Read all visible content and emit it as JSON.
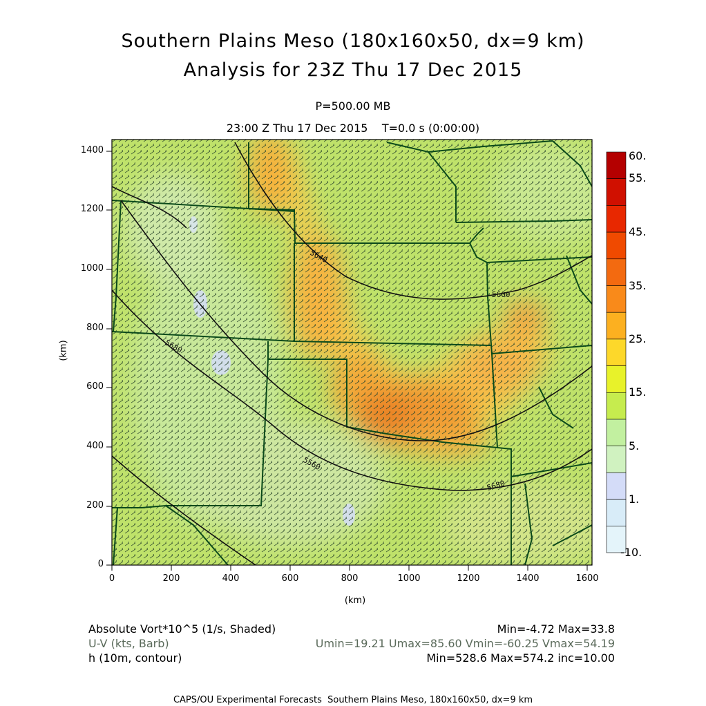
{
  "title": {
    "line1": "Southern Plains Meso (180x160x50, dx=9 km)",
    "line2": "Analysis for 23Z Thu 17 Dec 2015"
  },
  "level": "P=500.00 MB",
  "time_line": "23:00 Z Thu 17 Dec 2015    T=0.0 s (0:00:00)",
  "axes": {
    "xlabel": "(km)",
    "ylabel": "(km)",
    "x_ticks": [
      "0",
      "200",
      "400",
      "600",
      "800",
      "1000",
      "1200",
      "1400",
      "1600"
    ],
    "y_ticks": [
      "0",
      "200",
      "400",
      "600",
      "800",
      "1000",
      "1200",
      "1400"
    ]
  },
  "colorbar": {
    "labels": [
      "60.",
      "55.",
      "45.",
      "35.",
      "25.",
      "15.",
      "5.",
      "1.",
      "-10."
    ],
    "colors": [
      "#b40000",
      "#d01000",
      "#e82800",
      "#f04a00",
      "#f36a10",
      "#f98a1a",
      "#fcb020",
      "#fdd82a",
      "#e8f22a",
      "#c6ec4e",
      "#c2f0a0",
      "#d0f2c0",
      "#d4dcf8",
      "#d8ecf8",
      "#e4f4fa"
    ]
  },
  "contours": {
    "labels": [
      "5640",
      "5600",
      "5680",
      "5560",
      "5680"
    ]
  },
  "legend": {
    "vort_label": "Absolute Vort*10^5 (1/s, Shaded)",
    "vort_stats": "Min=-4.72 Max=33.8",
    "wind_label": "U-V (kts, Barb)",
    "wind_stats": "Umin=19.21 Umax=85.60 Vmin=-60.25 Vmax=54.19",
    "height_label": "h (10m, contour)",
    "height_stats": "Min=528.6 Max=574.2 inc=10.00"
  },
  "footer": "CAPS/OU Experimental Forecasts  Southern Plains Meso, 180x160x50, dx=9 km"
}
